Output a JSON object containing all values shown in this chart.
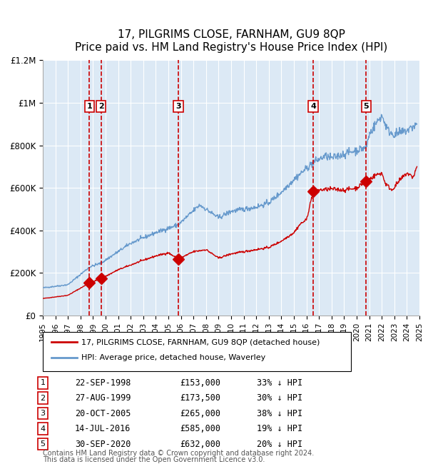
{
  "title": "17, PILGRIMS CLOSE, FARNHAM, GU9 8QP",
  "subtitle": "Price paid vs. HM Land Registry's House Price Index (HPI)",
  "legend_red": "17, PILGRIMS CLOSE, FARNHAM, GU9 8QP (detached house)",
  "legend_blue": "HPI: Average price, detached house, Waverley",
  "footnote1": "Contains HM Land Registry data © Crown copyright and database right 2024.",
  "footnote2": "This data is licensed under the Open Government Licence v3.0.",
  "bg_color": "#dce9f5",
  "plot_bg": "#dce9f5",
  "ylim": [
    0,
    1200000
  ],
  "yticks": [
    0,
    200000,
    400000,
    600000,
    800000,
    1000000,
    1200000
  ],
  "ytick_labels": [
    "£0",
    "£200K",
    "£400K",
    "£600K",
    "£800K",
    "£1M",
    "£1.2M"
  ],
  "sales": [
    {
      "label": "1",
      "date_str": "22-SEP-1998",
      "year": 1998.72,
      "price": 153000,
      "pct": "33% ↓ HPI"
    },
    {
      "label": "2",
      "date_str": "27-AUG-1999",
      "year": 1999.65,
      "price": 173500,
      "pct": "30% ↓ HPI"
    },
    {
      "label": "3",
      "date_str": "20-OCT-2005",
      "year": 2005.8,
      "price": 265000,
      "pct": "38% ↓ HPI"
    },
    {
      "label": "4",
      "date_str": "14-JUL-2016",
      "year": 2016.54,
      "price": 585000,
      "pct": "19% ↓ HPI"
    },
    {
      "label": "5",
      "date_str": "30-SEP-2020",
      "year": 2020.75,
      "price": 632000,
      "pct": "20% ↓ HPI"
    }
  ],
  "red_color": "#cc0000",
  "blue_color": "#6699cc",
  "marker_color": "#cc0000",
  "vline_color": "#cc0000",
  "grid_color": "#ffffff",
  "border_color": "#aaaaaa"
}
